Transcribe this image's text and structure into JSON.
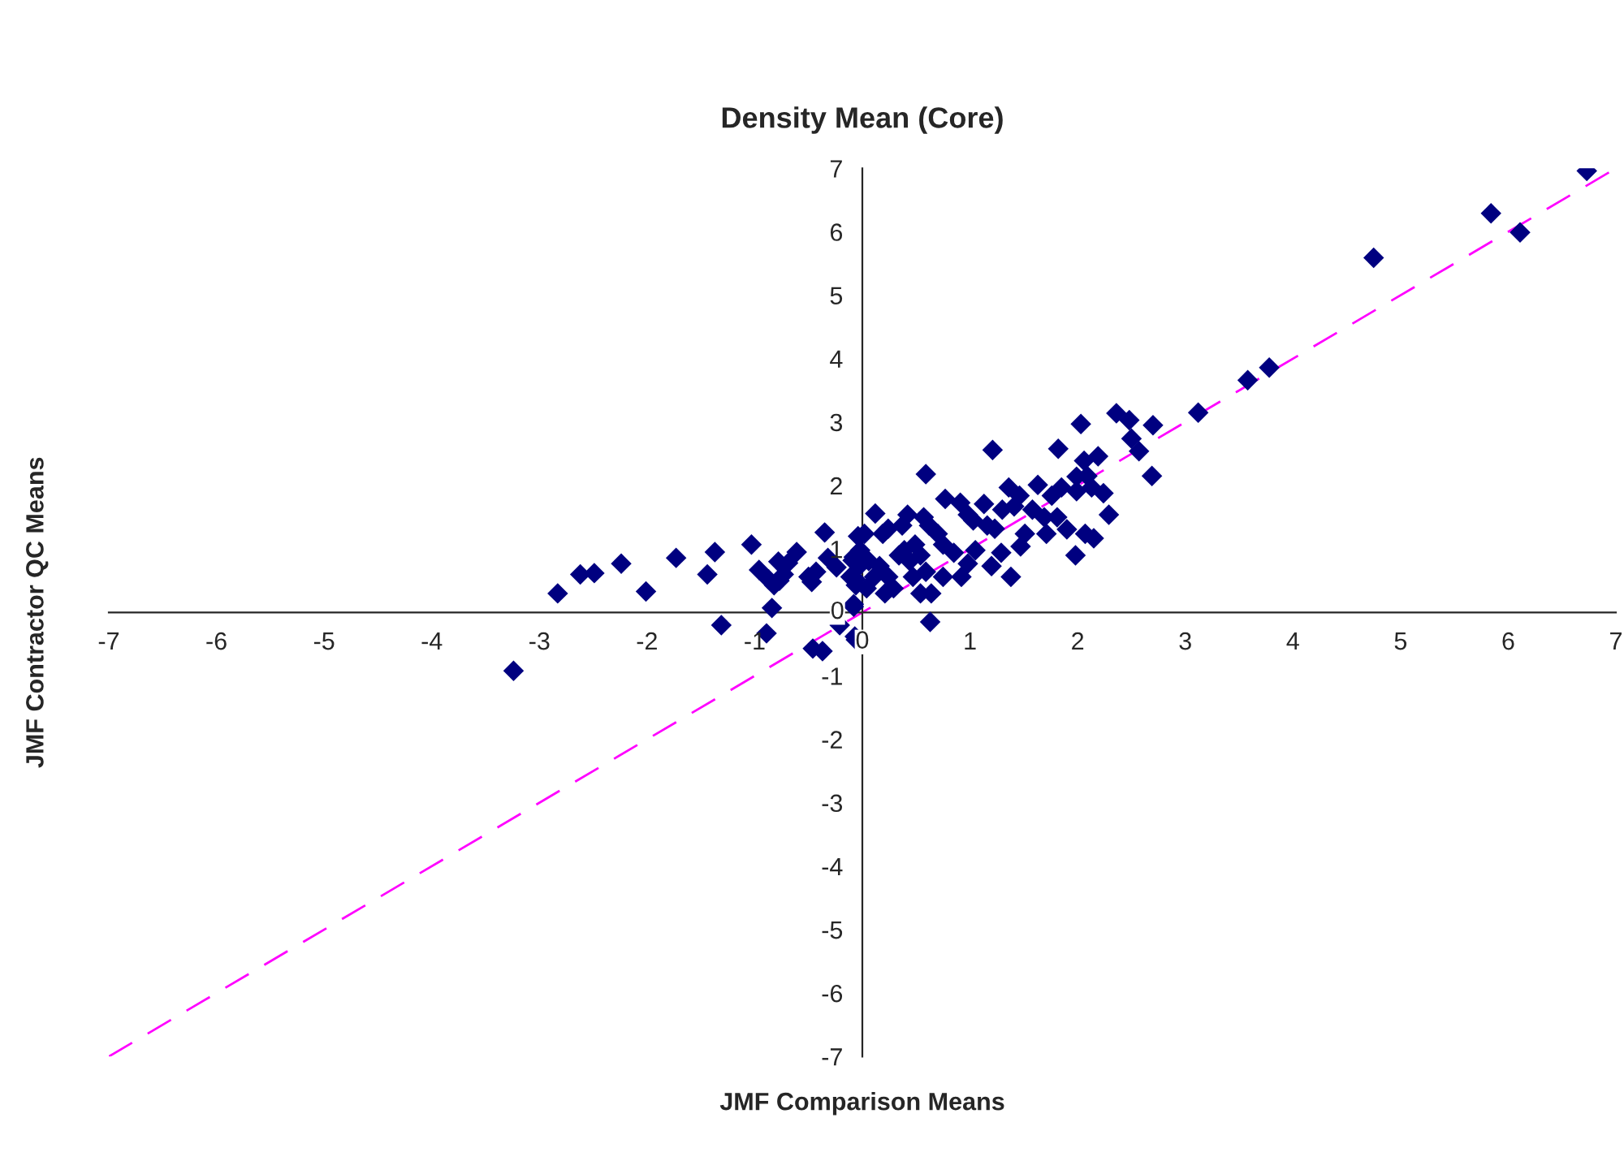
{
  "chart_data": {
    "type": "scatter",
    "title": "Density Mean (Core)",
    "xlabel": "JMF Comparison Means",
    "ylabel": "JMF Contractor QC Means",
    "xlim": [
      -7,
      7
    ],
    "ylim": [
      -7,
      7
    ],
    "xticks": [
      -7,
      -6,
      -5,
      -4,
      -3,
      -2,
      -1,
      0,
      1,
      2,
      3,
      4,
      5,
      6,
      7
    ],
    "yticks": [
      -7,
      -6,
      -5,
      -4,
      -3,
      -2,
      -1,
      0,
      1,
      2,
      3,
      4,
      5,
      6,
      7
    ],
    "grid": false,
    "series": [
      {
        "color": "#000080",
        "marker": "diamond",
        "x": [
          -3.24,
          -2.83,
          -2.62,
          -2.49,
          -2.24,
          -2.01,
          -1.73,
          -1.37,
          -1.44,
          -1.31,
          -1.03,
          -0.96,
          -0.89,
          -0.84,
          -0.87,
          -0.82,
          -0.77,
          -0.78,
          -0.69,
          -0.73,
          -0.61,
          -0.5,
          -0.47,
          -0.43,
          -0.35,
          -0.32,
          -0.24,
          -0.21,
          -0.46,
          -0.37,
          -0.06,
          -0.08,
          -0.09,
          -0.06,
          -0.04,
          -0.08,
          -0.11,
          -0.07,
          -0.08,
          0.02,
          -0.02,
          -0.06,
          -0.03,
          0.12,
          0.06,
          0.11,
          0.04,
          0.19,
          0.24,
          0.16,
          0.24,
          0.29,
          0.21,
          0.34,
          0.37,
          0.42,
          0.39,
          0.44,
          0.49,
          0.47,
          0.54,
          0.59,
          0.57,
          0.62,
          0.54,
          0.64,
          0.63,
          0.59,
          0.7,
          0.77,
          0.75,
          0.75,
          0.85,
          0.91,
          0.92,
          0.98,
          0.98,
          1.03,
          1.05,
          1.13,
          1.16,
          1.2,
          1.21,
          1.23,
          1.3,
          1.29,
          1.36,
          1.38,
          1.41,
          1.46,
          1.47,
          1.51,
          1.58,
          1.63,
          1.69,
          1.71,
          1.76,
          1.81,
          1.82,
          1.85,
          1.9,
          1.98,
          1.99,
          1.99,
          2.03,
          2.06,
          2.09,
          2.07,
          2.13,
          2.15,
          2.19,
          2.24,
          2.29,
          2.36,
          2.48,
          2.5,
          2.57,
          2.69,
          2.7,
          3.12,
          3.58,
          3.78,
          4.75,
          5.84,
          6.11,
          6.73
        ],
        "values": [
          -0.92,
          0.3,
          0.6,
          0.62,
          0.77,
          0.33,
          0.86,
          0.95,
          0.6,
          -0.2,
          1.07,
          0.67,
          -0.33,
          0.07,
          0.52,
          0.43,
          0.5,
          0.8,
          0.78,
          0.6,
          0.95,
          0.56,
          0.48,
          0.64,
          1.26,
          0.86,
          0.71,
          -0.2,
          -0.57,
          -0.61,
          -0.43,
          0.09,
          0.82,
          0.52,
          1.2,
          0.87,
          0.56,
          -0.38,
          0.13,
          1.24,
          0.98,
          0.43,
          0.73,
          1.56,
          0.81,
          0.56,
          0.38,
          1.24,
          1.32,
          0.73,
          0.56,
          0.38,
          0.3,
          0.9,
          1.37,
          1.54,
          0.98,
          0.81,
          1.07,
          0.56,
          0.9,
          2.18,
          1.5,
          1.37,
          0.3,
          0.3,
          -0.15,
          0.64,
          1.24,
          1.79,
          1.07,
          0.56,
          0.94,
          1.73,
          0.56,
          0.77,
          1.54,
          1.45,
          0.98,
          1.71,
          1.37,
          0.73,
          2.56,
          1.32,
          1.62,
          0.94,
          1.97,
          0.56,
          1.67,
          1.84,
          1.04,
          1.24,
          1.62,
          2.01,
          1.5,
          1.24,
          1.84,
          1.5,
          2.58,
          1.97,
          1.31,
          0.9,
          2.14,
          1.91,
          2.97,
          2.39,
          2.15,
          1.24,
          1.97,
          1.17,
          2.46,
          1.88,
          1.54,
          3.14,
          3.03,
          2.74,
          2.54,
          2.15,
          2.95,
          3.15,
          3.66,
          3.86,
          5.59,
          6.29,
          5.99,
          6.96
        ]
      },
      {
        "type": "line",
        "color": "#ff00ff",
        "line_style": "dashed",
        "marker": "none",
        "x": [
          -7,
          7
        ],
        "values": [
          -7,
          7
        ]
      }
    ]
  }
}
